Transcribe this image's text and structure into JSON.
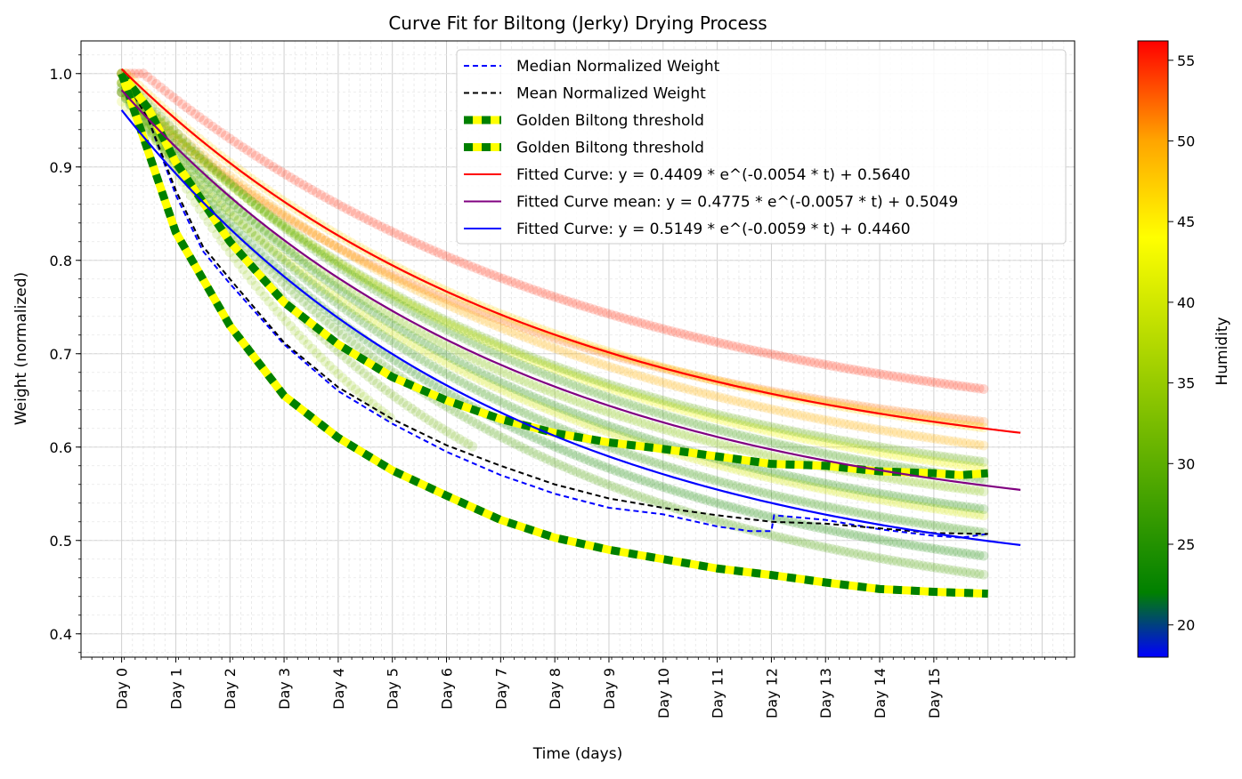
{
  "chart_data": {
    "type": "line",
    "title": "Curve Fit for Biltong (Jerky) Drying Process",
    "xlabel": "Time (days)",
    "ylabel": "Weight (normalized)",
    "x_tick_labels": [
      "Day 0",
      "Day 1",
      "Day 2",
      "Day 3",
      "Day 4",
      "Day 5",
      "Day 6",
      "Day 7",
      "Day 8",
      "Day 9",
      "Day 10",
      "Day 11",
      "Day 12",
      "Day 13",
      "Day 14",
      "Day 15"
    ],
    "y_tick_labels": [
      "0.4",
      "0.5",
      "0.6",
      "0.7",
      "0.8",
      "0.9",
      "1.0"
    ],
    "xlim": [
      -0.75,
      17.6
    ],
    "ylim": [
      0.375,
      1.035
    ],
    "grid": true,
    "legend_position": "top-right",
    "colorbar": {
      "label": "Humidity",
      "min": 18,
      "max": 56.2,
      "ticks": [
        "20",
        "25",
        "30",
        "35",
        "40",
        "45",
        "50",
        "55"
      ],
      "tick_values": [
        20,
        25,
        30,
        35,
        40,
        45,
        50,
        55
      ],
      "stops": [
        {
          "value": 18,
          "color": "#0000ff"
        },
        {
          "value": 22,
          "color": "#008000"
        },
        {
          "value": 44,
          "color": "#ffff00"
        },
        {
          "value": 50,
          "color": "#ffa500"
        },
        {
          "value": 56.2,
          "color": "#ff0000"
        }
      ]
    },
    "fits": [
      {
        "name": "Fitted Curve: y = 0.4409 * e^(-0.0054 * t) + 0.5640",
        "a": 0.4409,
        "b": 0.0054,
        "c": 0.564,
        "color": "#ff0000"
      },
      {
        "name": "Fitted Curve mean: y = 0.4775 * e^(-0.0057 * t) + 0.5049",
        "a": 0.4775,
        "b": 0.0057,
        "c": 0.5049,
        "color": "#800080"
      },
      {
        "name": "Fitted Curve: y = 0.5149 * e^(-0.0059 * t) + 0.4460",
        "a": 0.5149,
        "b": 0.0059,
        "c": 0.446,
        "color": "#0000ff"
      }
    ],
    "series": [
      {
        "name": "Median Normalized Weight",
        "color": "#0000ff",
        "style": "dashed",
        "points": [
          [
            0,
            1.0
          ],
          [
            0.5,
            0.95
          ],
          [
            1,
            0.87
          ],
          [
            1.5,
            0.81
          ],
          [
            2,
            0.775
          ],
          [
            3,
            0.71
          ],
          [
            4,
            0.66
          ],
          [
            5,
            0.625
          ],
          [
            6,
            0.595
          ],
          [
            7,
            0.57
          ],
          [
            8,
            0.55
          ],
          [
            9,
            0.535
          ],
          [
            10,
            0.528
          ],
          [
            11,
            0.515
          ],
          [
            11.6,
            0.51
          ],
          [
            12,
            0.51
          ],
          [
            12.05,
            0.527
          ],
          [
            13,
            0.522
          ],
          [
            14,
            0.512
          ],
          [
            15,
            0.505
          ],
          [
            15.5,
            0.503
          ],
          [
            16,
            0.507
          ]
        ]
      },
      {
        "name": "Mean Normalized Weight",
        "color": "#000000",
        "style": "dashed",
        "points": [
          [
            0,
            1.0
          ],
          [
            0.5,
            0.95
          ],
          [
            1,
            0.875
          ],
          [
            1.5,
            0.815
          ],
          [
            2,
            0.78
          ],
          [
            3,
            0.712
          ],
          [
            4,
            0.664
          ],
          [
            5,
            0.63
          ],
          [
            6,
            0.602
          ],
          [
            7,
            0.58
          ],
          [
            8,
            0.56
          ],
          [
            9,
            0.545
          ],
          [
            10,
            0.535
          ],
          [
            11,
            0.527
          ],
          [
            12,
            0.52
          ],
          [
            13,
            0.518
          ],
          [
            14,
            0.513
          ],
          [
            15,
            0.508
          ],
          [
            16,
            0.507
          ]
        ]
      },
      {
        "name": "Golden Biltong threshold",
        "color": "#008000",
        "style": "thick-dashed",
        "points": [
          [
            0,
            1.0
          ],
          [
            0.5,
            0.962
          ],
          [
            1,
            0.905
          ],
          [
            2,
            0.82
          ],
          [
            3,
            0.755
          ],
          [
            4,
            0.71
          ],
          [
            5,
            0.675
          ],
          [
            6,
            0.65
          ],
          [
            7,
            0.63
          ],
          [
            8,
            0.615
          ],
          [
            9,
            0.605
          ],
          [
            10,
            0.598
          ],
          [
            11,
            0.59
          ],
          [
            12,
            0.582
          ],
          [
            13,
            0.58
          ],
          [
            14,
            0.574
          ],
          [
            15,
            0.572
          ],
          [
            15.5,
            0.57
          ],
          [
            16,
            0.572
          ]
        ]
      },
      {
        "name": "Golden Biltong threshold",
        "color": "#008000",
        "style": "thick-dashed",
        "points": [
          [
            0,
            1.0
          ],
          [
            0.5,
            0.915
          ],
          [
            1,
            0.83
          ],
          [
            2,
            0.73
          ],
          [
            3,
            0.655
          ],
          [
            4,
            0.61
          ],
          [
            5,
            0.575
          ],
          [
            6,
            0.548
          ],
          [
            7,
            0.522
          ],
          [
            8,
            0.503
          ],
          [
            9,
            0.49
          ],
          [
            10,
            0.48
          ],
          [
            11,
            0.47
          ],
          [
            12,
            0.463
          ],
          [
            13,
            0.455
          ],
          [
            14,
            0.448
          ],
          [
            15,
            0.445
          ],
          [
            16,
            0.443
          ]
        ]
      }
    ],
    "scatter_bands": [
      {
        "humidity": 55,
        "a": 0.42,
        "b": 0.005,
        "c": 0.6,
        "t_end": 16
      },
      {
        "humidity": 52,
        "a": 0.4,
        "b": 0.0056,
        "c": 0.58,
        "t_end": 16
      },
      {
        "humidity": 49,
        "a": 0.45,
        "b": 0.0052,
        "c": 0.54,
        "t_end": 16
      },
      {
        "humidity": 47,
        "a": 0.44,
        "b": 0.0054,
        "c": 0.565,
        "t_end": 16
      },
      {
        "humidity": 43,
        "a": 0.47,
        "b": 0.0055,
        "c": 0.52,
        "t_end": 16
      },
      {
        "humidity": 40,
        "a": 0.5,
        "b": 0.0057,
        "c": 0.47,
        "t_end": 16
      },
      {
        "humidity": 33,
        "a": 0.48,
        "b": 0.0058,
        "c": 0.5,
        "t_end": 16
      },
      {
        "humidity": 30,
        "a": 0.46,
        "b": 0.0056,
        "c": 0.53,
        "t_end": 16
      },
      {
        "humidity": 27,
        "a": 0.49,
        "b": 0.0057,
        "c": 0.51,
        "t_end": 16
      },
      {
        "humidity": 25,
        "a": 0.51,
        "b": 0.0059,
        "c": 0.48,
        "t_end": 16
      },
      {
        "humidity": 26,
        "a": 0.53,
        "b": 0.006,
        "c": 0.455,
        "t_end": 16
      },
      {
        "humidity": 24,
        "a": 0.55,
        "b": 0.0061,
        "c": 0.43,
        "t_end": 16
      },
      {
        "humidity": 28,
        "a": 0.57,
        "b": 0.0062,
        "c": 0.41,
        "t_end": 16
      },
      {
        "humidity": 31,
        "a": 0.58,
        "b": 0.0075,
        "c": 0.42,
        "t_end": 6.5
      },
      {
        "humidity": 34,
        "a": 0.6,
        "b": 0.008,
        "c": 0.4,
        "t_end": 5
      }
    ]
  }
}
